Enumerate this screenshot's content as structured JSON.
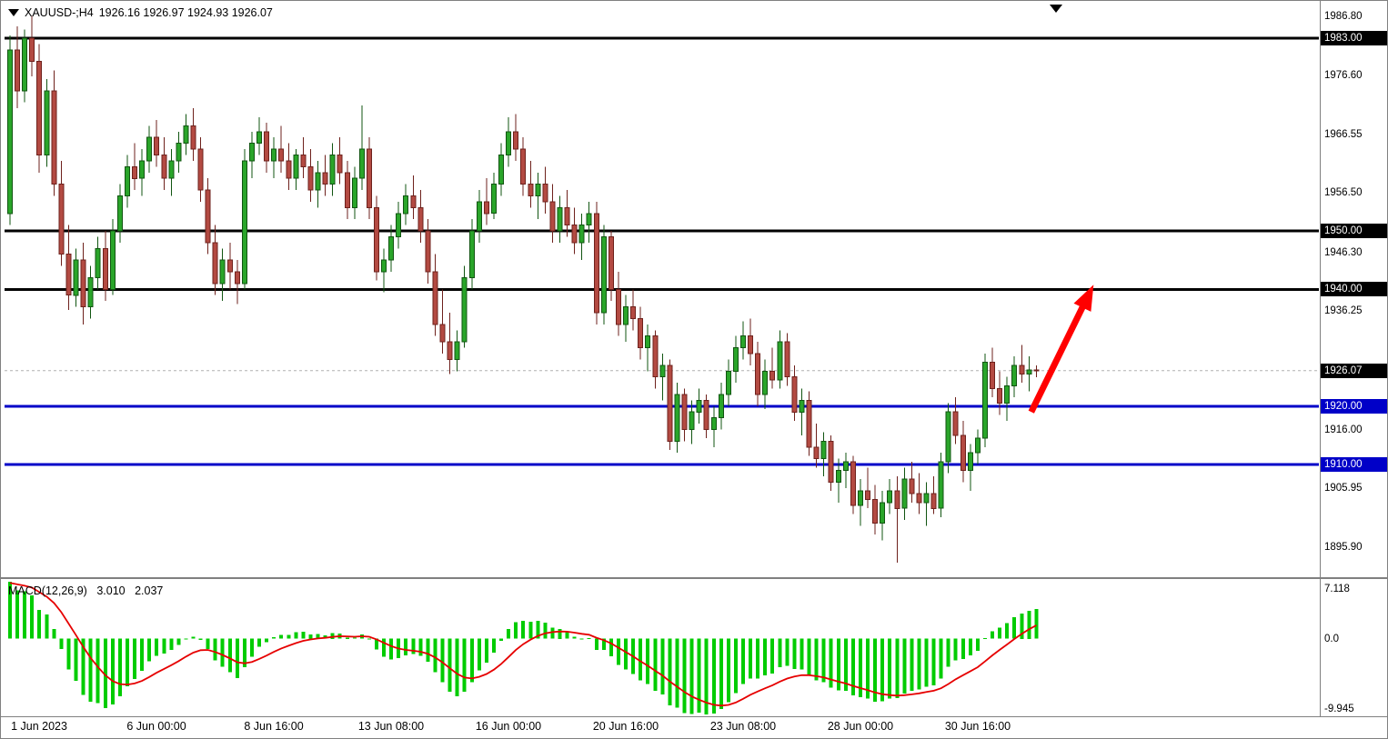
{
  "header": {
    "symbol_timeframe": "XAUUSD-;H4",
    "ohlc": "1926.16 1926.97 1924.93 1926.07"
  },
  "macd": {
    "label": "MACD(12,26,9)",
    "macd_value": "3.010",
    "signal_value": "2.037"
  },
  "price_axis": {
    "ticks": [
      {
        "text": "1986.80",
        "value": 1986.8
      },
      {
        "text": "1976.60",
        "value": 1976.6
      },
      {
        "text": "1966.55",
        "value": 1966.55
      },
      {
        "text": "1956.50",
        "value": 1956.5
      },
      {
        "text": "1946.30",
        "value": 1946.3
      },
      {
        "text": "1936.25",
        "value": 1936.25
      },
      {
        "text": "1916.00",
        "value": 1916.0
      },
      {
        "text": "1905.95",
        "value": 1905.95
      },
      {
        "text": "1895.90",
        "value": 1895.9
      }
    ],
    "badges": [
      {
        "text": "1983.00",
        "value": 1983.0,
        "type": "black"
      },
      {
        "text": "1950.00",
        "value": 1950.0,
        "type": "black"
      },
      {
        "text": "1940.00",
        "value": 1940.0,
        "type": "black"
      },
      {
        "text": "1926.07",
        "value": 1926.07,
        "type": "black"
      },
      {
        "text": "1920.00",
        "value": 1920.0,
        "type": "blue"
      },
      {
        "text": "1910.00",
        "value": 1910.0,
        "type": "blue"
      }
    ]
  },
  "macd_axis": [
    {
      "text": "7.118",
      "pos": "max"
    },
    {
      "text": "0.0",
      "pos": "zero"
    },
    {
      "text": "-9.945",
      "pos": "min"
    }
  ],
  "time_axis": [
    {
      "text": "1 Jun 2023",
      "bar": 4
    },
    {
      "text": "6 Jun 00:00",
      "bar": 20
    },
    {
      "text": "8 Jun 16:00",
      "bar": 36
    },
    {
      "text": "13 Jun 08:00",
      "bar": 52
    },
    {
      "text": "16 Jun 00:00",
      "bar": 68
    },
    {
      "text": "20 Jun 16:00",
      "bar": 84
    },
    {
      "text": "23 Jun 08:00",
      "bar": 100
    },
    {
      "text": "28 Jun 00:00",
      "bar": 116
    },
    {
      "text": "30 Jun 16:00",
      "bar": 132
    }
  ],
  "colors": {
    "bull_fill": "#2aa52a",
    "bull_stroke": "#115511",
    "bear_fill": "#b34a42",
    "bear_stroke": "#6e211c",
    "level_black": "#000000",
    "level_blue": "#0000c8",
    "badge_black": "#000000",
    "badge_blue": "#0000c8",
    "macd_histogram": "#00cc00",
    "macd_signal": "#e60000",
    "current_price_line": "#b0b0b0",
    "arrow": "#ff0000"
  },
  "chart_data": {
    "type": "candlestick+macd",
    "symbol": "XAUUSD",
    "timeframe": "H4",
    "title": "XAUUSD-;H4 gold candlestick chart with horizontal levels, MACD(12,26,9) subwindow and red up-trending annotation arrow",
    "price_range": {
      "top": 1988.76,
      "bottom": 1890.71
    },
    "current_price": 1926.07,
    "levels": [
      {
        "value": 1983.0,
        "color": "black"
      },
      {
        "value": 1950.0,
        "color": "black"
      },
      {
        "value": 1940.0,
        "color": "black"
      },
      {
        "value": 1920.0,
        "color": "blue"
      },
      {
        "value": 1910.0,
        "color": "blue"
      }
    ],
    "arrow": {
      "from": {
        "bar": 139.3,
        "price": 1919.0
      },
      "to": {
        "bar": 147.8,
        "price": 1940.8
      }
    },
    "macd_settings": {
      "fast": 12,
      "slow": 26,
      "signal": 9,
      "macd_value": 3.01,
      "signal_value": 2.037,
      "scale_max": 7.118,
      "scale_min": -9.945
    },
    "candles": [
      [
        1953,
        1983.5,
        1951,
        1981
      ],
      [
        1981,
        1985,
        1971,
        1974
      ],
      [
        1974,
        1984.5,
        1972,
        1983
      ],
      [
        1983,
        1986.8,
        1976.5,
        1979
      ],
      [
        1979,
        1982,
        1960,
        1963
      ],
      [
        1963,
        1976,
        1961,
        1974
      ],
      [
        1974,
        1977.5,
        1956,
        1958
      ],
      [
        1958,
        1962,
        1944,
        1946
      ],
      [
        1946,
        1951,
        1936.5,
        1939
      ],
      [
        1939,
        1947,
        1937,
        1945
      ],
      [
        1945,
        1948,
        1934,
        1937
      ],
      [
        1937,
        1944,
        1935,
        1942
      ],
      [
        1942,
        1949,
        1940,
        1947
      ],
      [
        1947,
        1950,
        1938,
        1940
      ],
      [
        1940,
        1952,
        1939,
        1950
      ],
      [
        1950,
        1958,
        1948,
        1956
      ],
      [
        1956,
        1963,
        1954,
        1961
      ],
      [
        1961,
        1965,
        1957,
        1959
      ],
      [
        1959,
        1964,
        1956,
        1962
      ],
      [
        1962,
        1968,
        1960,
        1966
      ],
      [
        1966,
        1969,
        1961,
        1963
      ],
      [
        1963,
        1966,
        1957,
        1959
      ],
      [
        1959,
        1964,
        1956,
        1962
      ],
      [
        1962,
        1967,
        1960,
        1965
      ],
      [
        1965,
        1970,
        1963,
        1968
      ],
      [
        1968,
        1971,
        1962,
        1964
      ],
      [
        1964,
        1966,
        1955,
        1957
      ],
      [
        1957,
        1959,
        1946,
        1948
      ],
      [
        1948,
        1951,
        1939,
        1941
      ],
      [
        1941,
        1947,
        1938,
        1945
      ],
      [
        1945,
        1948,
        1940,
        1943
      ],
      [
        1943,
        1945,
        1937.5,
        1941
      ],
      [
        1941,
        1964,
        1940,
        1962
      ],
      [
        1962,
        1967,
        1959,
        1965
      ],
      [
        1965,
        1969.5,
        1963,
        1967
      ],
      [
        1967,
        1968.5,
        1960,
        1962
      ],
      [
        1962,
        1966,
        1959,
        1964
      ],
      [
        1964,
        1968,
        1960,
        1962
      ],
      [
        1962,
        1965,
        1957,
        1959
      ],
      [
        1959,
        1964,
        1957,
        1963
      ],
      [
        1963,
        1966,
        1959,
        1961
      ],
      [
        1961,
        1964,
        1955,
        1957
      ],
      [
        1957,
        1962,
        1954,
        1960
      ],
      [
        1960,
        1963,
        1956,
        1958
      ],
      [
        1958,
        1965,
        1956,
        1963
      ],
      [
        1963,
        1966,
        1958,
        1960
      ],
      [
        1960,
        1962,
        1952,
        1954
      ],
      [
        1954,
        1961,
        1952,
        1959
      ],
      [
        1959,
        1971.5,
        1957,
        1964
      ],
      [
        1964,
        1966,
        1952,
        1954
      ],
      [
        1954,
        1956,
        1941.5,
        1943
      ],
      [
        1943,
        1947,
        1939.5,
        1945
      ],
      [
        1945,
        1951,
        1943,
        1949
      ],
      [
        1949,
        1955,
        1947,
        1953
      ],
      [
        1953,
        1958,
        1951,
        1956
      ],
      [
        1956,
        1959.5,
        1952,
        1954
      ],
      [
        1954,
        1957,
        1948,
        1950
      ],
      [
        1950,
        1952,
        1941,
        1943
      ],
      [
        1943,
        1946,
        1932,
        1934
      ],
      [
        1934,
        1940,
        1929,
        1931
      ],
      [
        1931,
        1936,
        1925.5,
        1928
      ],
      [
        1928,
        1933,
        1926,
        1931
      ],
      [
        1931,
        1944,
        1930,
        1942
      ],
      [
        1942,
        1952,
        1940,
        1950
      ],
      [
        1950,
        1957,
        1948,
        1955
      ],
      [
        1955,
        1959,
        1951,
        1953
      ],
      [
        1953,
        1960,
        1952,
        1958
      ],
      [
        1958,
        1965,
        1956,
        1963
      ],
      [
        1963,
        1969.5,
        1961,
        1967
      ],
      [
        1967,
        1970,
        1962,
        1964
      ],
      [
        1964,
        1966,
        1956,
        1958
      ],
      [
        1958,
        1962,
        1954,
        1956
      ],
      [
        1956,
        1960,
        1952,
        1958
      ],
      [
        1958,
        1961,
        1953,
        1955
      ],
      [
        1955,
        1958,
        1948,
        1950
      ],
      [
        1950,
        1956,
        1948,
        1954
      ],
      [
        1954,
        1957,
        1949,
        1951
      ],
      [
        1951,
        1954,
        1946,
        1948
      ],
      [
        1948,
        1953,
        1945,
        1951
      ],
      [
        1951,
        1955,
        1948,
        1953
      ],
      [
        1953,
        1955,
        1934,
        1936
      ],
      [
        1936,
        1951,
        1934,
        1949
      ],
      [
        1949,
        1950,
        1938,
        1940
      ],
      [
        1940,
        1943,
        1932,
        1934
      ],
      [
        1934,
        1939,
        1931,
        1937
      ],
      [
        1937,
        1940,
        1933,
        1935
      ],
      [
        1935,
        1937,
        1928,
        1930
      ],
      [
        1930,
        1934,
        1926,
        1932
      ],
      [
        1932,
        1933,
        1923,
        1925
      ],
      [
        1925,
        1929,
        1921,
        1927
      ],
      [
        1927,
        1928,
        1912.5,
        1914
      ],
      [
        1914,
        1924,
        1912,
        1922
      ],
      [
        1922,
        1923,
        1914,
        1916
      ],
      [
        1916,
        1921,
        1913.5,
        1919
      ],
      [
        1919,
        1923,
        1917,
        1921
      ],
      [
        1921,
        1922,
        1914.5,
        1916
      ],
      [
        1916,
        1920,
        1913,
        1918
      ],
      [
        1918,
        1924,
        1916,
        1922
      ],
      [
        1922,
        1928,
        1920,
        1926
      ],
      [
        1926,
        1932,
        1924,
        1930
      ],
      [
        1930,
        1934.5,
        1928,
        1932
      ],
      [
        1932,
        1935,
        1927,
        1929
      ],
      [
        1929,
        1931,
        1920,
        1922
      ],
      [
        1922,
        1928,
        1919.5,
        1926
      ],
      [
        1926,
        1930,
        1923,
        1924.5
      ],
      [
        1924.5,
        1933,
        1923,
        1931
      ],
      [
        1931,
        1932.5,
        1923.5,
        1925
      ],
      [
        1925,
        1927,
        1917.5,
        1919
      ],
      [
        1919,
        1923,
        1915,
        1921
      ],
      [
        1921,
        1922.5,
        1911.5,
        1913
      ],
      [
        1913,
        1917,
        1909.5,
        1911
      ],
      [
        1911,
        1915.5,
        1908,
        1914
      ],
      [
        1914,
        1915,
        1905.5,
        1907
      ],
      [
        1907,
        1911,
        1903.5,
        1909
      ],
      [
        1909,
        1912,
        1906,
        1910.5
      ],
      [
        1910.5,
        1911.5,
        1901.5,
        1903
      ],
      [
        1903,
        1907.5,
        1899.5,
        1905.5
      ],
      [
        1905.5,
        1909.5,
        1902.5,
        1904
      ],
      [
        1904,
        1906.5,
        1898,
        1900
      ],
      [
        1900,
        1905.5,
        1897,
        1903.5
      ],
      [
        1903.5,
        1907.5,
        1901.5,
        1905.5
      ],
      [
        1905.5,
        1908,
        1893.2,
        1902.5
      ],
      [
        1902.5,
        1909.5,
        1900.5,
        1907.5
      ],
      [
        1907.5,
        1910.5,
        1903.5,
        1905
      ],
      [
        1905,
        1908.5,
        1901.5,
        1903.5
      ],
      [
        1903.5,
        1907,
        1899.5,
        1905
      ],
      [
        1905,
        1908,
        1901.5,
        1902.5
      ],
      [
        1902.5,
        1912,
        1901,
        1910.5
      ],
      [
        1910.5,
        1920.5,
        1908.5,
        1919
      ],
      [
        1919,
        1921.5,
        1913.5,
        1915
      ],
      [
        1915,
        1917.5,
        1907,
        1909
      ],
      [
        1909,
        1913.5,
        1905.5,
        1912
      ],
      [
        1912,
        1916,
        1910,
        1914.5
      ],
      [
        1914.5,
        1929,
        1913,
        1927.5
      ],
      [
        1927.5,
        1930,
        1921.5,
        1923
      ],
      [
        1923,
        1926,
        1918.5,
        1920.5
      ],
      [
        1920.5,
        1925,
        1917.5,
        1923.5
      ],
      [
        1923.5,
        1928.5,
        1921.5,
        1927
      ],
      [
        1927,
        1930.5,
        1924,
        1925.5
      ],
      [
        1925.5,
        1928.5,
        1922.5,
        1926.16
      ],
      [
        1926.16,
        1926.97,
        1924.93,
        1926.07
      ]
    ]
  }
}
